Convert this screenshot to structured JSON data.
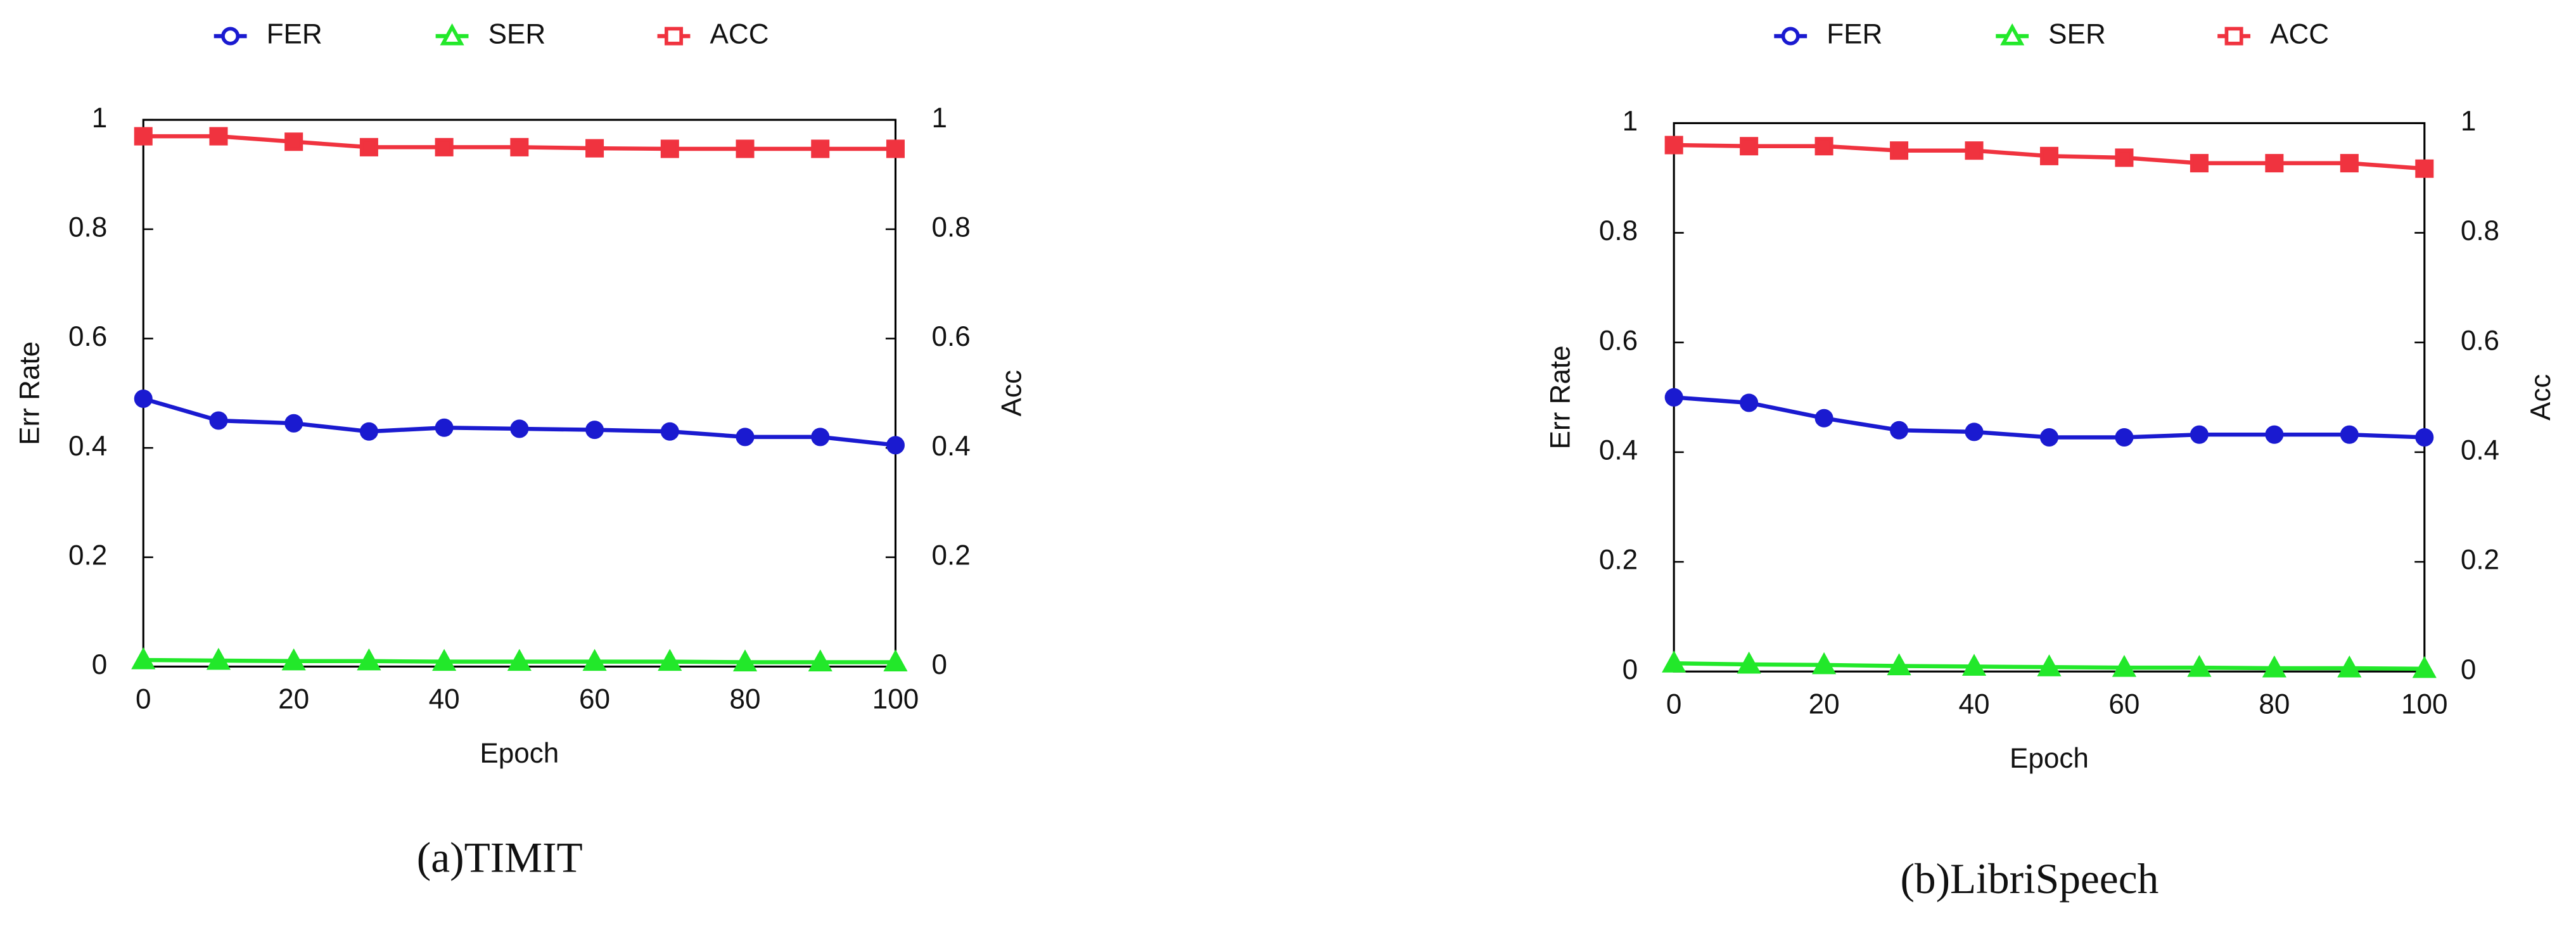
{
  "chart_data": [
    {
      "type": "line",
      "title": "(a)TIMIT",
      "xlabel": "Epoch",
      "ylabel": "Err Rate",
      "y2label": "Acc",
      "x": [
        0,
        10,
        20,
        30,
        40,
        50,
        60,
        70,
        80,
        90,
        100
      ],
      "xlim": [
        0,
        100
      ],
      "xticks": [
        0,
        20,
        40,
        60,
        80,
        100
      ],
      "ylim": [
        0,
        1
      ],
      "yticks": [
        0,
        0.2,
        0.4,
        0.6,
        0.8,
        1
      ],
      "y2lim": [
        0,
        1
      ],
      "y2ticks": [
        0,
        0.2,
        0.4,
        0.6,
        0.8,
        1
      ],
      "legend": "top",
      "series": [
        {
          "name": "FER",
          "color": "#1a1ad0",
          "marker": "circle",
          "values": [
            0.49,
            0.45,
            0.445,
            0.43,
            0.437,
            0.435,
            0.433,
            0.43,
            0.42,
            0.42,
            0.405
          ]
        },
        {
          "name": "SER",
          "color": "#22e82a",
          "marker": "triangle",
          "values": [
            0.012,
            0.011,
            0.01,
            0.01,
            0.009,
            0.009,
            0.009,
            0.009,
            0.008,
            0.008,
            0.008
          ]
        },
        {
          "name": "ACC",
          "color": "#f0333f",
          "marker": "square",
          "axis": "y2",
          "values": [
            0.97,
            0.97,
            0.96,
            0.95,
            0.95,
            0.95,
            0.948,
            0.947,
            0.947,
            0.947,
            0.947
          ]
        }
      ]
    },
    {
      "type": "line",
      "title": "(b)LibriSpeech",
      "xlabel": "Epoch",
      "ylabel": "Err Rate",
      "y2label": "Acc",
      "x": [
        0,
        10,
        20,
        30,
        40,
        50,
        60,
        70,
        80,
        90,
        100
      ],
      "xlim": [
        0,
        100
      ],
      "xticks": [
        0,
        20,
        40,
        60,
        80,
        100
      ],
      "ylim": [
        0,
        1
      ],
      "yticks": [
        0,
        0.2,
        0.4,
        0.6,
        0.8,
        1
      ],
      "y2lim": [
        0,
        1
      ],
      "y2ticks": [
        0,
        0.2,
        0.4,
        0.6,
        0.8,
        1
      ],
      "legend": "top",
      "series": [
        {
          "name": "FER",
          "color": "#1a1ad0",
          "marker": "circle",
          "values": [
            0.5,
            0.49,
            0.462,
            0.44,
            0.437,
            0.427,
            0.427,
            0.432,
            0.432,
            0.432,
            0.427
          ]
        },
        {
          "name": "SER",
          "color": "#22e82a",
          "marker": "triangle",
          "values": [
            0.015,
            0.013,
            0.012,
            0.01,
            0.009,
            0.008,
            0.007,
            0.007,
            0.006,
            0.006,
            0.005
          ]
        },
        {
          "name": "ACC",
          "color": "#f0333f",
          "marker": "square",
          "axis": "y2",
          "values": [
            0.96,
            0.958,
            0.958,
            0.95,
            0.95,
            0.94,
            0.937,
            0.927,
            0.927,
            0.927,
            0.917
          ]
        }
      ]
    }
  ]
}
